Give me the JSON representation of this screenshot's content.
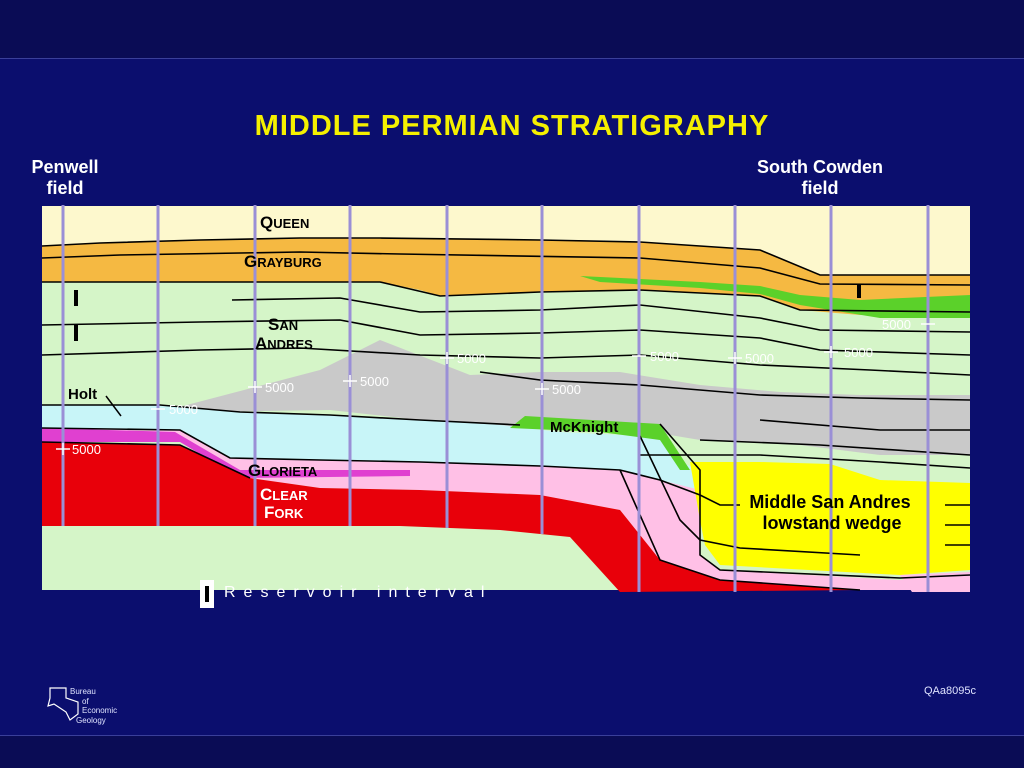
{
  "title": "MIDDLE PERMIAN STRATIGRAPHY",
  "fields": {
    "left": {
      "line1": "Penwell",
      "line2": "field"
    },
    "right": {
      "line1": "South  Cowden",
      "line2": "field"
    }
  },
  "units": {
    "queen": {
      "big": "Q",
      "small": "UEEN"
    },
    "grayburg": {
      "big": "G",
      "small": "RAYBURG"
    },
    "san": {
      "big": "S",
      "small": "AN"
    },
    "andres": {
      "big": "A",
      "small": "NDRES"
    },
    "glorieta": {
      "big": "G",
      "small": "LORIETA"
    },
    "clear": {
      "big": "C",
      "small": "LEAR"
    },
    "fork": {
      "big": "F",
      "small": "ORK"
    },
    "holt": "Holt",
    "mcknight": "McKnight",
    "wedge_line1": "Middle San Andres",
    "wedge_line2": "lowstand  wedge"
  },
  "depth_label": "5000",
  "legend": {
    "label": "Reservoir  interval"
  },
  "logo": {
    "line1": "Bureau",
    "line2": "of",
    "line3": "Economic",
    "line4": "Geology",
    "icon": "texas-outline-icon"
  },
  "code": "QAa8095c",
  "colors": {
    "queen": "#fdf8cd",
    "grayburg": "#f5b942",
    "sanandres": "#d5f5c8",
    "gray": "#c9c9c9",
    "glorieta": "#ffc0e6",
    "clearfork": "#e8000a",
    "lightblue": "#c8f5f8",
    "green": "#5bd12a",
    "yellow": "#ffff00",
    "wells": "#9a8fd6"
  }
}
